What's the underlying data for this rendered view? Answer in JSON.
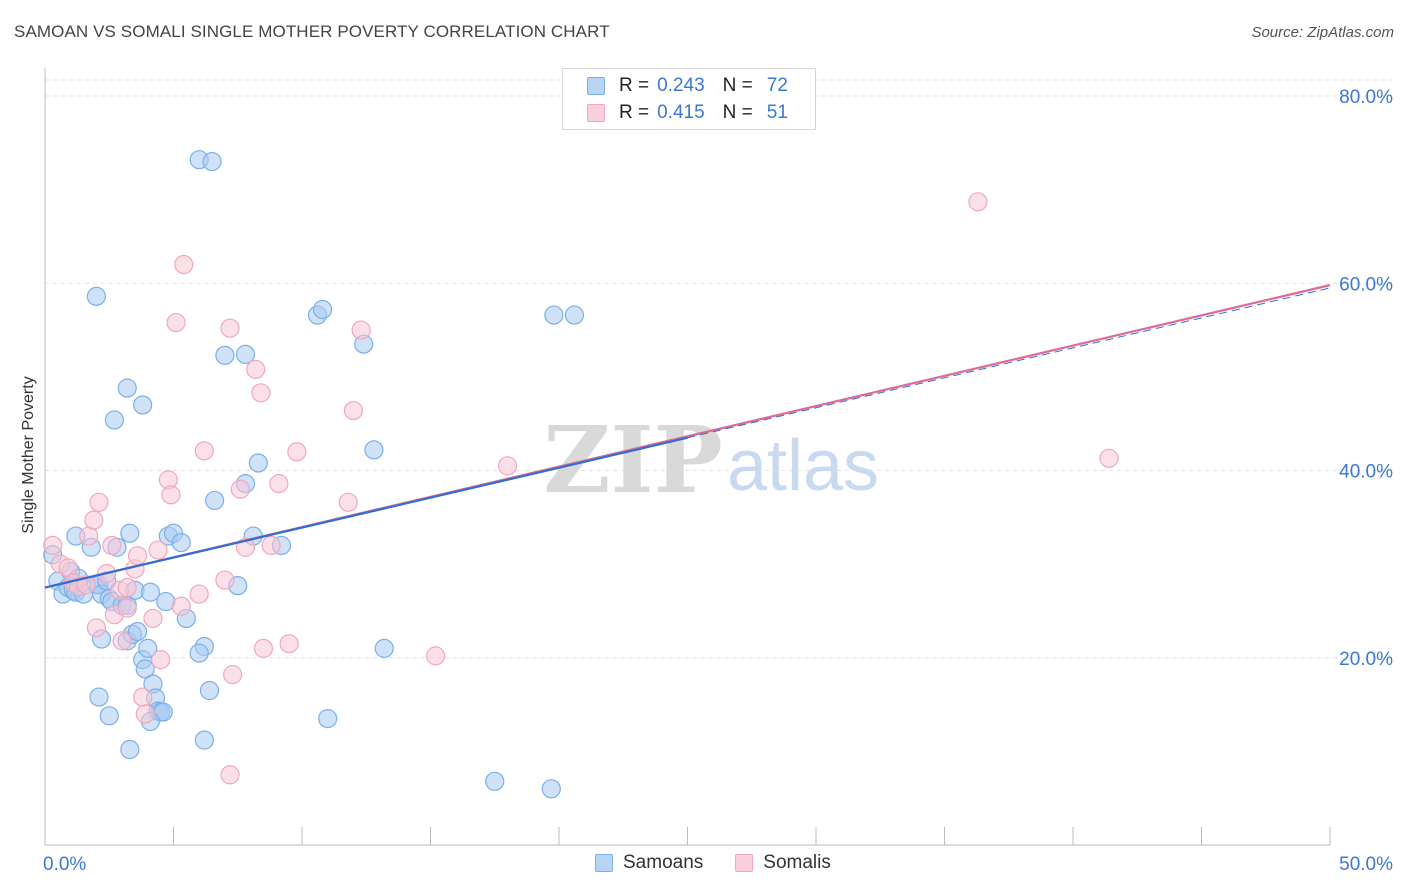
{
  "chart_data": {
    "type": "scatter",
    "title": "SAMOAN VS SOMALI SINGLE MOTHER POVERTY CORRELATION CHART",
    "source": "Source: ZipAtlas.com",
    "watermark": "ZIPatlas",
    "xlabel": "",
    "ylabel": "Single Mother Poverty",
    "xlim": [
      0,
      50
    ],
    "ylim": [
      0,
      80
    ],
    "x_tick_labels": [
      "0.0%",
      "50.0%"
    ],
    "y_tick_labels": [
      "20.0%",
      "40.0%",
      "60.0%",
      "80.0%"
    ],
    "y_tick_values": [
      20,
      40,
      60,
      80
    ],
    "grid": true,
    "legend": {
      "placement": "top-center",
      "rows": [
        {
          "r_label": "R =",
          "r_value": "0.243",
          "n_label": "N =",
          "n_value": "72"
        },
        {
          "r_label": "R =",
          "r_value": "0.415",
          "n_label": "N =",
          "n_value": "51"
        }
      ]
    },
    "series": [
      {
        "name": "Samoans",
        "color": "#7ab0e8",
        "fill": "#a9cbf2",
        "line_color": "#2f6fd1",
        "trend": {
          "x0": 0,
          "y0": 27.5,
          "x1": 25,
          "y1": 43.5,
          "dashed_to": 50,
          "dashed_y1": 59.5
        },
        "points": [
          [
            0.3,
            31
          ],
          [
            0.5,
            28.2
          ],
          [
            0.7,
            26.8
          ],
          [
            0.9,
            27.5
          ],
          [
            1.0,
            29.2
          ],
          [
            1.1,
            27.2
          ],
          [
            1.2,
            27
          ],
          [
            1.3,
            28.5
          ],
          [
            1.5,
            26.8
          ],
          [
            1.2,
            33
          ],
          [
            1.8,
            31.8
          ],
          [
            2.0,
            27.8
          ],
          [
            2.1,
            27.8
          ],
          [
            2.2,
            26.8
          ],
          [
            2.2,
            22
          ],
          [
            2.4,
            28.2
          ],
          [
            2.5,
            26.3
          ],
          [
            2.6,
            26
          ],
          [
            2.8,
            31.8
          ],
          [
            3.0,
            25.6
          ],
          [
            3.2,
            25.6
          ],
          [
            3.2,
            21.8
          ],
          [
            3.3,
            33.3
          ],
          [
            3.4,
            22.5
          ],
          [
            3.5,
            27.2
          ],
          [
            3.6,
            22.8
          ],
          [
            3.8,
            19.8
          ],
          [
            3.9,
            18.8
          ],
          [
            4.0,
            21.0
          ],
          [
            4.1,
            27
          ],
          [
            4.2,
            17.2
          ],
          [
            4.3,
            15.7
          ],
          [
            4.4,
            14.3
          ],
          [
            4.5,
            14.2
          ],
          [
            4.6,
            14.2
          ],
          [
            4.7,
            26
          ],
          [
            4.8,
            33
          ],
          [
            5.0,
            33.3
          ],
          [
            5.3,
            32.3
          ],
          [
            5.5,
            24.2
          ],
          [
            6.2,
            21.2
          ],
          [
            6.4,
            16.5
          ],
          [
            6.0,
            20.5
          ],
          [
            6.2,
            11.2
          ],
          [
            2.1,
            15.8
          ],
          [
            2.5,
            13.8
          ],
          [
            3.3,
            10.2
          ],
          [
            4.1,
            13.2
          ],
          [
            2.7,
            45.4
          ],
          [
            3.2,
            48.8
          ],
          [
            3.8,
            47.0
          ],
          [
            6.0,
            73.2
          ],
          [
            6.5,
            73.0
          ],
          [
            6.6,
            36.8
          ],
          [
            7.0,
            52.3
          ],
          [
            7.8,
            52.4
          ],
          [
            7.8,
            38.6
          ],
          [
            8.1,
            33
          ],
          [
            8.3,
            40.8
          ],
          [
            7.5,
            27.7
          ],
          [
            9.2,
            32
          ],
          [
            10.6,
            56.6
          ],
          [
            10.8,
            57.2
          ],
          [
            12.4,
            53.5
          ],
          [
            12.8,
            42.2
          ],
          [
            13.2,
            21.0
          ],
          [
            11.0,
            13.5
          ],
          [
            17.5,
            6.8
          ],
          [
            19.7,
            6.0
          ],
          [
            19.8,
            56.6
          ],
          [
            20.6,
            56.6
          ],
          [
            2.0,
            58.6
          ]
        ]
      },
      {
        "name": "Somalis",
        "color": "#f0a8bf",
        "fill": "#f7c6d6",
        "line_color": "#df6a95",
        "trend": {
          "x0": 0,
          "y0": 27.5,
          "x1": 50,
          "y1": 59.8
        },
        "points": [
          [
            0.3,
            32
          ],
          [
            0.6,
            30
          ],
          [
            0.9,
            29.6
          ],
          [
            1.1,
            28.0
          ],
          [
            1.3,
            27.6
          ],
          [
            1.6,
            27.8
          ],
          [
            1.7,
            33.0
          ],
          [
            1.9,
            34.7
          ],
          [
            2.1,
            36.6
          ],
          [
            2.0,
            23.2
          ],
          [
            2.4,
            29.0
          ],
          [
            2.7,
            24.6
          ],
          [
            2.9,
            27.2
          ],
          [
            3.0,
            21.8
          ],
          [
            3.2,
            25.3
          ],
          [
            3.5,
            29.5
          ],
          [
            3.6,
            30.9
          ],
          [
            3.8,
            15.8
          ],
          [
            3.9,
            14.0
          ],
          [
            4.2,
            24.2
          ],
          [
            4.5,
            19.8
          ],
          [
            4.8,
            39.0
          ],
          [
            4.9,
            37.4
          ],
          [
            5.1,
            55.8
          ],
          [
            5.3,
            25.5
          ],
          [
            5.4,
            62.0
          ],
          [
            6.0,
            26.8
          ],
          [
            6.2,
            42.1
          ],
          [
            7.0,
            28.3
          ],
          [
            7.2,
            55.2
          ],
          [
            7.3,
            18.2
          ],
          [
            7.6,
            38.0
          ],
          [
            7.8,
            31.8
          ],
          [
            8.2,
            50.8
          ],
          [
            8.4,
            48.3
          ],
          [
            8.5,
            21.0
          ],
          [
            8.8,
            32.0
          ],
          [
            9.1,
            38.6
          ],
          [
            9.5,
            21.5
          ],
          [
            9.8,
            42.0
          ],
          [
            11.8,
            36.6
          ],
          [
            12.0,
            46.4
          ],
          [
            12.3,
            55.0
          ],
          [
            15.2,
            20.2
          ],
          [
            18.0,
            40.5
          ],
          [
            36.3,
            68.7
          ],
          [
            41.4,
            41.3
          ],
          [
            7.2,
            7.5
          ],
          [
            3.2,
            27.5
          ],
          [
            2.6,
            32.0
          ],
          [
            4.4,
            31.5
          ]
        ]
      }
    ]
  }
}
